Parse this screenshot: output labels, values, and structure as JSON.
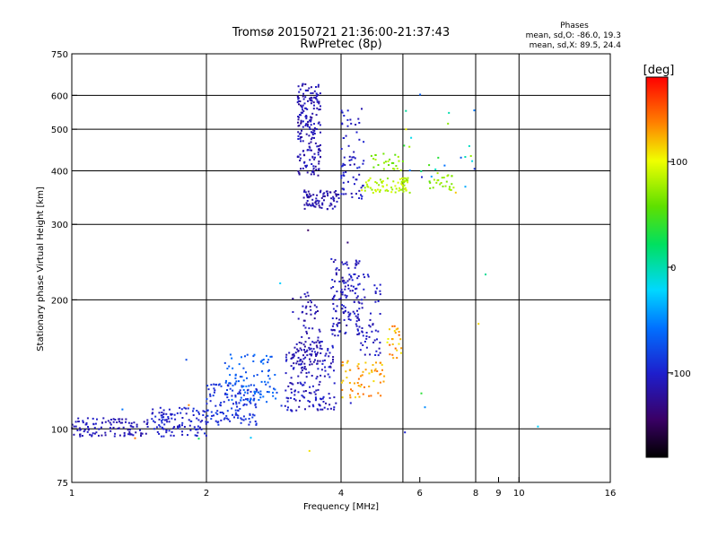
{
  "chart_data": {
    "type": "scatter",
    "title": "Tromsø 20150721 21:36:00-21:37:43",
    "subtitle": "RwPretec (8p)",
    "xlabel": "Frequency [MHz]",
    "ylabel": "Stationary phase Virtual Height [km]",
    "x_scale": "log",
    "y_scale": "log",
    "xlim": [
      1,
      16
    ],
    "ylim": [
      75,
      750
    ],
    "x_ticks": [
      1,
      2,
      4,
      6,
      8,
      9,
      10,
      16
    ],
    "x_tick_labels": [
      "1",
      "2",
      "4",
      "6",
      "8",
      "9",
      "10",
      "16"
    ],
    "y_ticks": [
      75,
      100,
      200,
      300,
      400,
      500,
      600,
      750
    ],
    "y_tick_labels": [
      "75",
      "100",
      "200",
      "300",
      "400",
      "500",
      "600",
      "750"
    ],
    "x_gridlines": [
      2,
      4,
      5.5,
      8,
      10
    ],
    "y_gridlines": [
      100,
      200,
      300,
      400,
      500,
      600
    ],
    "grid": true,
    "legend_position": "top-right",
    "phases_title": "Phases",
    "phase_stats": [
      "mean, sd,O: -86.0, 19.3",
      "mean, sd,X: 89.5, 24.4"
    ],
    "colorbar": {
      "label": "[deg]",
      "range": [
        -180,
        180
      ],
      "ticks": [
        100,
        0,
        -100
      ],
      "tick_labels": [
        "100",
        "0",
        "-100"
      ]
    },
    "clusters": [
      {
        "f": [
          1.0,
          1.5
        ],
        "h": [
          96,
          106
        ],
        "phase": [
          -118,
          -100
        ],
        "n": 110
      },
      {
        "f": [
          1.5,
          2.0
        ],
        "h": [
          96,
          112
        ],
        "phase": [
          -110,
          -90
        ],
        "n": 110
      },
      {
        "f": [
          2.0,
          2.6
        ],
        "h": [
          102,
          128
        ],
        "phase": [
          -100,
          -80
        ],
        "n": 130
      },
      {
        "f": [
          2.2,
          2.9
        ],
        "h": [
          115,
          150
        ],
        "phase": [
          -80,
          -55
        ],
        "n": 90
      },
      {
        "f": [
          3.0,
          3.9
        ],
        "h": [
          110,
          160
        ],
        "phase": [
          -120,
          -95
        ],
        "n": 170
      },
      {
        "f": [
          3.1,
          3.6
        ],
        "h": [
          140,
          210
        ],
        "phase": [
          -125,
          -105
        ],
        "n": 80
      },
      {
        "f": [
          3.8,
          4.4
        ],
        "h": [
          165,
          250
        ],
        "phase": [
          -120,
          -95
        ],
        "n": 130
      },
      {
        "f": [
          4.3,
          4.9
        ],
        "h": [
          145,
          230
        ],
        "phase": [
          -115,
          -95
        ],
        "n": 60
      },
      {
        "f": [
          4.0,
          5.0
        ],
        "h": [
          118,
          145
        ],
        "phase": [
          110,
          145
        ],
        "n": 60
      },
      {
        "f": [
          5.0,
          5.5
        ],
        "h": [
          145,
          175
        ],
        "phase": [
          100,
          150
        ],
        "n": 25
      },
      {
        "f": [
          3.2,
          3.6
        ],
        "h": [
          390,
          640
        ],
        "phase": [
          -125,
          -100
        ],
        "n": 200
      },
      {
        "f": [
          3.3,
          4.0
        ],
        "h": [
          325,
          360
        ],
        "phase": [
          -125,
          -105
        ],
        "n": 80
      },
      {
        "f": [
          4.0,
          4.5
        ],
        "h": [
          340,
          560
        ],
        "phase": [
          -115,
          -95
        ],
        "n": 70
      },
      {
        "f": [
          4.5,
          5.7
        ],
        "h": [
          355,
          385
        ],
        "phase": [
          70,
          95
        ],
        "n": 70
      },
      {
        "f": [
          4.6,
          5.5
        ],
        "h": [
          400,
          440
        ],
        "phase": [
          55,
          85
        ],
        "n": 25
      },
      {
        "f": [
          6.3,
          7.2
        ],
        "h": [
          360,
          395
        ],
        "phase": [
          65,
          85
        ],
        "n": 25
      },
      {
        "f": [
          5.5,
          8.0
        ],
        "h": [
          350,
          560
        ],
        "phase": [
          -110,
          120
        ],
        "n": 25
      },
      {
        "f": [
          1.1,
          13.5
        ],
        "h": [
          80,
          620
        ],
        "phase": [
          -150,
          150
        ],
        "n": 20
      }
    ]
  }
}
